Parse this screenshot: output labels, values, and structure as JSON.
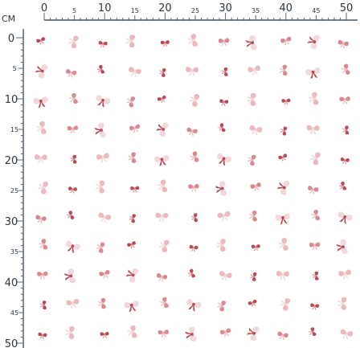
{
  "ruler": {
    "unit_label": "CM",
    "top_labels": [
      "0",
      "5",
      "10",
      "15",
      "20",
      "25",
      "30",
      "35",
      "40",
      "45",
      "50"
    ],
    "left_labels": [
      "0",
      "5",
      "10",
      "15",
      "20",
      "25",
      "30",
      "35",
      "40",
      "45",
      "50"
    ]
  },
  "pattern": {
    "description_name": "bow-pattern",
    "colors": {
      "bow_dark": "#b84a55",
      "bow_mid": "#d98a90",
      "bow_light": "#e9b9bd",
      "bow_pale": "#f2d8da",
      "ruler_text": "#2c3542",
      "ruler_line": "#4a5566"
    }
  }
}
